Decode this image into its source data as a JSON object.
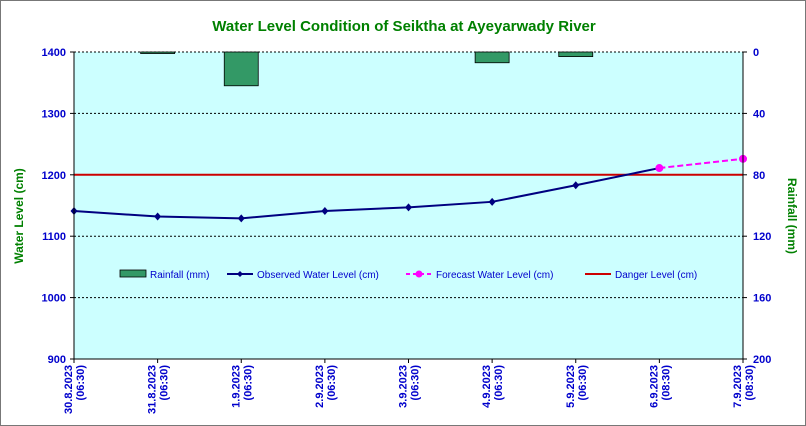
{
  "chart_data": {
    "type": "bar+line",
    "title": "Water Level Condition  of Seiktha at Ayeyarwady  River",
    "ylabel": "Water Level (cm)",
    "y2label": "Rainfall (mm)",
    "ylim": [
      900,
      1400
    ],
    "yticks": [
      900,
      1000,
      1100,
      1200,
      1300,
      1400
    ],
    "y2lim": [
      0,
      200
    ],
    "y2ticks": [
      0,
      40,
      80,
      120,
      160,
      200
    ],
    "y2_reversed": true,
    "categories": [
      "30.8.2023 (06:30)",
      "31.8.2023 (06:30)",
      "1.9.2023 (06:30)",
      "2.9.2023 (06:30)",
      "3.9.2023 (06:30)",
      "4.9.2023 (06:30)",
      "5.9.2023 (06:30)",
      "6.9.2023 (08:30)",
      "7.9.2023 (08:30)"
    ],
    "series": [
      {
        "name": "Rainfall (mm)",
        "type": "bar",
        "axis": "right",
        "color": "#339966",
        "values": [
          0,
          1,
          22,
          0,
          0,
          7,
          3,
          null,
          null
        ]
      },
      {
        "name": "Observed Water Level (cm)",
        "type": "line",
        "color": "#000080",
        "values": [
          1141,
          1132,
          1129,
          1141,
          1147,
          1156,
          1183,
          1211,
          null
        ]
      },
      {
        "name": "Forecast Water Level (cm)",
        "type": "line-dashed",
        "color": "#ff00ff",
        "values": [
          null,
          null,
          null,
          null,
          null,
          null,
          null,
          1211,
          1226
        ]
      },
      {
        "name": "Danger Level (cm)",
        "type": "hline",
        "color": "#cc0000",
        "value": 1200
      }
    ],
    "legend": "center",
    "grid": true
  }
}
